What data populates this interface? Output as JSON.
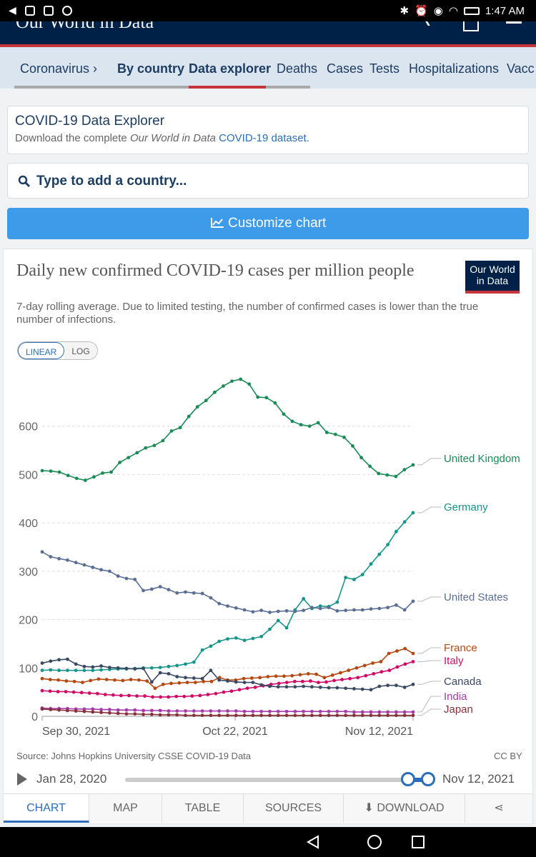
{
  "status_bar": {
    "time": "1:47 AM"
  },
  "header": {
    "brand": "Our World in Data"
  },
  "subnav": [
    {
      "label": "Coronavirus ›"
    },
    {
      "label": "By country"
    },
    {
      "label": "Data explorer"
    },
    {
      "label": "Deaths"
    },
    {
      "label": "Cases"
    },
    {
      "label": "Tests"
    },
    {
      "label": "Hospitalizations"
    },
    {
      "label": "Vacc"
    }
  ],
  "download_card": {
    "title": "COVID-19 Data Explorer",
    "sub_prefix": "Download the complete ",
    "sub_em": "Our World in Data",
    "sub_link": "COVID-19 dataset."
  },
  "search": {
    "placeholder": "Type to add a country..."
  },
  "customize_button": "Customize chart",
  "chart": {
    "title": "Daily new confirmed COVID-19 cases per million people",
    "subtitle": "7-day rolling average. Due to limited testing, the number of confirmed cases is lower than the true number of infections.",
    "logo_line1": "Our World",
    "logo_line2": "in Data",
    "scale_linear": "LINEAR",
    "scale_log": "LOG",
    "source": "Source: Johns Hopkins University CSSE COVID-19 Data",
    "license": "CC BY"
  },
  "timeline": {
    "start": "Jan 28, 2020",
    "end": "Nov 12, 2021"
  },
  "tabs": [
    {
      "label": "CHART"
    },
    {
      "label": "MAP"
    },
    {
      "label": "TABLE"
    },
    {
      "label": "SOURCES"
    },
    {
      "label": "DOWNLOAD"
    }
  ],
  "chart_data": {
    "type": "line",
    "x_tick_labels": [
      "Sep 30, 2021",
      "Oct 22, 2021",
      "Nov 12, 2021"
    ],
    "y_ticks": [
      0,
      100,
      200,
      300,
      400,
      500,
      600
    ],
    "ylim": [
      0,
      700
    ],
    "grid": true,
    "legend": "right, labels at line ends",
    "series": [
      {
        "name": "United Kingdom",
        "color": "#1a8a56",
        "values": [
          508,
          507,
          505,
          498,
          492,
          488,
          495,
          503,
          505,
          525,
          535,
          545,
          555,
          560,
          570,
          590,
          597,
          620,
          640,
          653,
          670,
          683,
          693,
          697,
          687,
          660,
          659,
          648,
          625,
          610,
          603,
          600,
          607,
          587,
          583,
          577,
          559,
          535,
          517,
          502,
          499,
          496,
          510,
          520
        ]
      },
      {
        "name": "Germany",
        "color": "#17958b",
        "values": [
          95,
          96,
          95,
          95,
          95,
          95,
          95,
          96,
          97,
          98,
          98,
          99,
          100,
          100,
          101,
          103,
          105,
          108,
          112,
          137,
          145,
          155,
          160,
          162,
          157,
          161,
          165,
          180,
          198,
          183,
          220,
          243,
          223,
          228,
          227,
          236,
          287,
          283,
          293,
          315,
          335,
          355,
          382,
          402,
          421
        ]
      },
      {
        "name": "United States",
        "color": "#5a6e93",
        "values": [
          340,
          330,
          326,
          323,
          318,
          313,
          308,
          303,
          300,
          290,
          285,
          283,
          260,
          263,
          268,
          262,
          255,
          257,
          255,
          254,
          245,
          233,
          228,
          224,
          220,
          216,
          219,
          215,
          217,
          218,
          217,
          219,
          225,
          223,
          225,
          218,
          219,
          220,
          220,
          222,
          223,
          225,
          230,
          220,
          238
        ]
      },
      {
        "name": "France",
        "color": "#b54810",
        "values": [
          78,
          76,
          75,
          73,
          72,
          70,
          74,
          77,
          76,
          75,
          74,
          76,
          75,
          73,
          58,
          66,
          68,
          69,
          70,
          70,
          72,
          72,
          80,
          75,
          75,
          78,
          79,
          80,
          82,
          83,
          83,
          84,
          86,
          88,
          87,
          80,
          85,
          90,
          95,
          100,
          105,
          110,
          113,
          130,
          135,
          140,
          130
        ]
      },
      {
        "name": "Italy",
        "color": "#cf0a66",
        "values": [
          53,
          52,
          51,
          51,
          50,
          49,
          48,
          47,
          45,
          44,
          43,
          43,
          42,
          42,
          40,
          40,
          40,
          41,
          41,
          42,
          43,
          45,
          47,
          50,
          52,
          55,
          58,
          60,
          63,
          66,
          68,
          70,
          72,
          72,
          73,
          70,
          71,
          74,
          76,
          78,
          80,
          84,
          88,
          92,
          95,
          102,
          108,
          113
        ]
      },
      {
        "name": "Canada",
        "color": "#3a4963",
        "values": [
          110,
          114,
          117,
          118,
          108,
          103,
          102,
          104,
          101,
          100,
          99,
          98,
          99,
          71,
          90,
          88,
          82,
          80,
          79,
          78,
          95,
          75,
          73,
          71,
          70,
          70,
          65,
          62,
          61,
          61,
          61,
          62,
          61,
          60,
          59,
          59,
          58,
          57,
          56,
          55,
          62,
          64,
          64,
          60,
          66
        ]
      },
      {
        "name": "India",
        "color": "#a63aa8",
        "values": [
          17,
          16,
          16,
          16,
          15,
          15,
          15,
          14,
          14,
          13,
          13,
          13,
          12,
          12,
          12,
          11,
          11,
          11,
          11,
          11,
          11,
          11,
          11,
          11,
          10,
          10,
          10,
          10,
          10,
          10,
          10,
          10,
          10,
          10,
          10,
          10,
          10,
          9,
          9,
          9,
          9,
          9,
          9,
          9,
          9
        ]
      },
      {
        "name": "Japan",
        "color": "#883039",
        "values": [
          15,
          14,
          13,
          12,
          11,
          10,
          9,
          8,
          7,
          6,
          5,
          5,
          4,
          4,
          3,
          3,
          3,
          2,
          2,
          2,
          2,
          2,
          2,
          2,
          2,
          2,
          2,
          2,
          2,
          2,
          2,
          2,
          2,
          2,
          2,
          2,
          2,
          2,
          2,
          2,
          2,
          2,
          2,
          2,
          2
        ]
      }
    ]
  }
}
